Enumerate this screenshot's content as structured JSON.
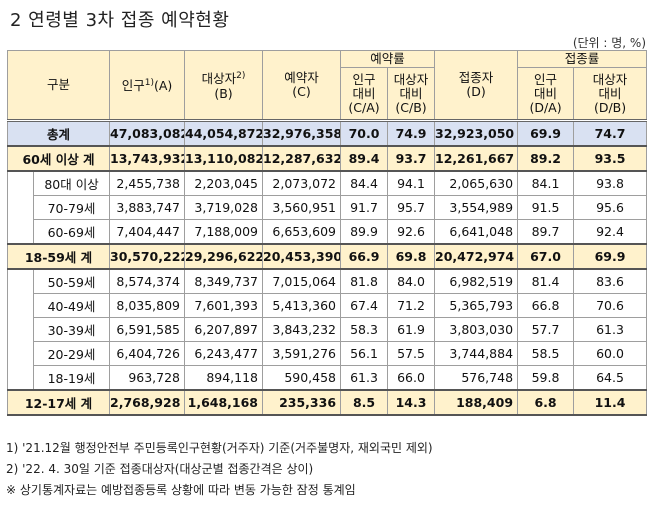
{
  "title": "2 연령별 3차 접종 예약현황",
  "unit": "(단위 : 명, %)",
  "headers": {
    "category": "구분",
    "population": "인구",
    "population_sup": "1)",
    "population_code": "(A)",
    "target": "대상자",
    "target_sup": "2)",
    "target_code": "(B)",
    "reserved": "예약자",
    "reserved_code": "(C)",
    "reservation_rate": "예약률",
    "vaccinated": "접종자",
    "vaccinated_code": "(D)",
    "vaccination_rate": "접종률",
    "pop_ratio": "인구",
    "target_ratio": "대상자",
    "ratio": "대비",
    "ca": "(C/A)",
    "cb": "(C/B)",
    "da": "(D/A)",
    "db": "(D/B)"
  },
  "rows": [
    {
      "label": "총계",
      "type": "total",
      "pop": "47,083,082",
      "target": "44,054,872",
      "res": "32,976,358",
      "ca": "70.0",
      "cb": "74.9",
      "vac": "32,923,050",
      "da": "69.9",
      "db": "74.7"
    },
    {
      "label": "60세 이상 계",
      "type": "group",
      "pop": "13,743,932",
      "target": "13,110,082",
      "res": "12,287,632",
      "ca": "89.4",
      "cb": "93.7",
      "vac": "12,261,667",
      "da": "89.2",
      "db": "93.5"
    },
    {
      "label": "80대 이상",
      "type": "sub",
      "pop": "2,455,738",
      "target": "2,203,045",
      "res": "2,073,072",
      "ca": "84.4",
      "cb": "94.1",
      "vac": "2,065,630",
      "da": "84.1",
      "db": "93.8"
    },
    {
      "label": "70-79세",
      "type": "sub",
      "pop": "3,883,747",
      "target": "3,719,028",
      "res": "3,560,951",
      "ca": "91.7",
      "cb": "95.7",
      "vac": "3,554,989",
      "da": "91.5",
      "db": "95.6"
    },
    {
      "label": "60-69세",
      "type": "sub",
      "pop": "7,404,447",
      "target": "7,188,009",
      "res": "6,653,609",
      "ca": "89.9",
      "cb": "92.6",
      "vac": "6,641,048",
      "da": "89.7",
      "db": "92.4"
    },
    {
      "label": "18-59세 계",
      "type": "group",
      "pop": "30,570,222",
      "target": "29,296,622",
      "res": "20,453,390",
      "ca": "66.9",
      "cb": "69.8",
      "vac": "20,472,974",
      "da": "67.0",
      "db": "69.9"
    },
    {
      "label": "50-59세",
      "type": "sub",
      "pop": "8,574,374",
      "target": "8,349,737",
      "res": "7,015,064",
      "ca": "81.8",
      "cb": "84.0",
      "vac": "6,982,519",
      "da": "81.4",
      "db": "83.6"
    },
    {
      "label": "40-49세",
      "type": "sub",
      "pop": "8,035,809",
      "target": "7,601,393",
      "res": "5,413,360",
      "ca": "67.4",
      "cb": "71.2",
      "vac": "5,365,793",
      "da": "66.8",
      "db": "70.6"
    },
    {
      "label": "30-39세",
      "type": "sub",
      "pop": "6,591,585",
      "target": "6,207,897",
      "res": "3,843,232",
      "ca": "58.3",
      "cb": "61.9",
      "vac": "3,803,030",
      "da": "57.7",
      "db": "61.3"
    },
    {
      "label": "20-29세",
      "type": "sub",
      "pop": "6,404,726",
      "target": "6,243,477",
      "res": "3,591,276",
      "ca": "56.1",
      "cb": "57.5",
      "vac": "3,744,884",
      "da": "58.5",
      "db": "60.0"
    },
    {
      "label": "18-19세",
      "type": "sub",
      "pop": "963,728",
      "target": "894,118",
      "res": "590,458",
      "ca": "61.3",
      "cb": "66.0",
      "vac": "576,748",
      "da": "59.8",
      "db": "64.5"
    },
    {
      "label": "12-17세 계",
      "type": "group",
      "pop": "2,768,928",
      "target": "1,648,168",
      "res": "235,336",
      "ca": "8.5",
      "cb": "14.3",
      "vac": "188,409",
      "da": "6.8",
      "db": "11.4"
    }
  ],
  "notes": [
    "1) '21.12월 행정안전부 주민등록인구현황(거주자) 기준(거주불명자, 재외국민 제외)",
    "2) '22. 4. 30일 기준 접종대상자(대상군별 접종간격은 상이)",
    "※ 상기통계자료는 예방접종등록 상황에 따라 변동 가능한 잠정 통계임"
  ]
}
